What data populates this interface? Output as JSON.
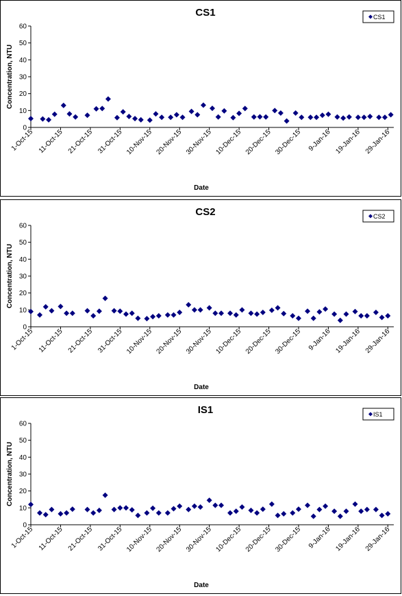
{
  "chart_data": [
    {
      "type": "scatter",
      "title": "CS1",
      "xlabel": "Date",
      "ylabel": "Concentration, NTU",
      "ylim": [
        0,
        60
      ],
      "yticks": [
        0,
        10,
        20,
        30,
        40,
        50,
        60
      ],
      "xlim": [
        "2015-10-01",
        "2016-01-31"
      ],
      "xticks": [
        "1-Oct-15",
        "11-Oct-15",
        "21-Oct-15",
        "31-Oct-15",
        "10-Nov-15",
        "20-Nov-15",
        "30-Nov-15",
        "10-Dec-15",
        "20-Dec-15",
        "30-Dec-15",
        "9-Jan-16",
        "19-Jan-16",
        "29-Jan-16"
      ],
      "legend_position": "top-right",
      "grid": false,
      "series": [
        {
          "name": "CS1",
          "color": "#000080",
          "points": [
            [
              "2015-10-01",
              5.2
            ],
            [
              "2015-10-05",
              5.0
            ],
            [
              "2015-10-07",
              4.5
            ],
            [
              "2015-10-09",
              7.8
            ],
            [
              "2015-10-12",
              13.0
            ],
            [
              "2015-10-14",
              8.0
            ],
            [
              "2015-10-16",
              6.2
            ],
            [
              "2015-10-20",
              7.2
            ],
            [
              "2015-10-23",
              11.0
            ],
            [
              "2015-10-25",
              11.2
            ],
            [
              "2015-10-27",
              16.8
            ],
            [
              "2015-10-30",
              5.8
            ],
            [
              "2015-11-01",
              9.2
            ],
            [
              "2015-11-03",
              6.5
            ],
            [
              "2015-11-05",
              5.2
            ],
            [
              "2015-11-07",
              4.5
            ],
            [
              "2015-11-10",
              4.3
            ],
            [
              "2015-11-12",
              8.0
            ],
            [
              "2015-11-14",
              6.0
            ],
            [
              "2015-11-17",
              6.0
            ],
            [
              "2015-11-19",
              7.5
            ],
            [
              "2015-11-21",
              6.0
            ],
            [
              "2015-11-24",
              9.5
            ],
            [
              "2015-11-26",
              7.5
            ],
            [
              "2015-11-28",
              13.2
            ],
            [
              "2015-12-01",
              11.3
            ],
            [
              "2015-12-03",
              6.2
            ],
            [
              "2015-12-05",
              9.8
            ],
            [
              "2015-12-08",
              5.8
            ],
            [
              "2015-12-10",
              8.3
            ],
            [
              "2015-12-12",
              11.2
            ],
            [
              "2015-12-15",
              6.2
            ],
            [
              "2015-12-17",
              6.3
            ],
            [
              "2015-12-19",
              6.2
            ],
            [
              "2015-12-22",
              10.0
            ],
            [
              "2015-12-24",
              8.5
            ],
            [
              "2015-12-26",
              3.8
            ],
            [
              "2015-12-29",
              8.5
            ],
            [
              "2015-12-31",
              6.0
            ],
            [
              "2016-01-03",
              6.0
            ],
            [
              "2016-01-05",
              6.0
            ],
            [
              "2016-01-07",
              7.2
            ],
            [
              "2016-01-09",
              7.8
            ],
            [
              "2016-01-12",
              6.2
            ],
            [
              "2016-01-14",
              5.5
            ],
            [
              "2016-01-16",
              6.2
            ],
            [
              "2016-01-19",
              6.0
            ],
            [
              "2016-01-21",
              6.0
            ],
            [
              "2016-01-23",
              6.5
            ],
            [
              "2016-01-26",
              6.0
            ],
            [
              "2016-01-28",
              6.0
            ],
            [
              "2016-01-30",
              7.5
            ]
          ]
        }
      ]
    },
    {
      "type": "scatter",
      "title": "CS2",
      "xlabel": "Date",
      "ylabel": "Concentration, NTU",
      "ylim": [
        0,
        60
      ],
      "yticks": [
        0,
        10,
        20,
        30,
        40,
        50,
        60
      ],
      "xlim": [
        "2015-10-01",
        "2016-01-31"
      ],
      "xticks": [
        "1-Oct-15",
        "11-Oct-15",
        "21-Oct-15",
        "31-Oct-15",
        "10-Nov-15",
        "20-Nov-15",
        "30-Nov-15",
        "10-Dec-15",
        "20-Dec-15",
        "30-Dec-15",
        "9-Jan-16",
        "19-Jan-16",
        "29-Jan-16"
      ],
      "legend_position": "top-right",
      "grid": false,
      "series": [
        {
          "name": "CS2",
          "color": "#000080",
          "points": [
            [
              "2015-10-01",
              9.0
            ],
            [
              "2015-10-04",
              7.0
            ],
            [
              "2015-10-06",
              11.8
            ],
            [
              "2015-10-08",
              9.5
            ],
            [
              "2015-10-11",
              12.0
            ],
            [
              "2015-10-13",
              8.0
            ],
            [
              "2015-10-15",
              8.0
            ],
            [
              "2015-10-20",
              9.5
            ],
            [
              "2015-10-22",
              6.5
            ],
            [
              "2015-10-24",
              9.2
            ],
            [
              "2015-10-26",
              16.8
            ],
            [
              "2015-10-29",
              9.5
            ],
            [
              "2015-10-31",
              9.2
            ],
            [
              "2015-11-02",
              7.5
            ],
            [
              "2015-11-04",
              8.0
            ],
            [
              "2015-11-06",
              5.0
            ],
            [
              "2015-11-09",
              4.8
            ],
            [
              "2015-11-11",
              6.0
            ],
            [
              "2015-11-13",
              6.5
            ],
            [
              "2015-11-16",
              7.0
            ],
            [
              "2015-11-18",
              7.0
            ],
            [
              "2015-11-20",
              8.5
            ],
            [
              "2015-11-23",
              13.0
            ],
            [
              "2015-11-25",
              10.0
            ],
            [
              "2015-11-27",
              10.0
            ],
            [
              "2015-11-30",
              11.2
            ],
            [
              "2015-12-02",
              8.0
            ],
            [
              "2015-12-04",
              8.0
            ],
            [
              "2015-12-07",
              8.0
            ],
            [
              "2015-12-09",
              7.0
            ],
            [
              "2015-12-11",
              10.0
            ],
            [
              "2015-12-14",
              8.0
            ],
            [
              "2015-12-16",
              7.5
            ],
            [
              "2015-12-18",
              8.5
            ],
            [
              "2015-12-21",
              9.8
            ],
            [
              "2015-12-23",
              11.2
            ],
            [
              "2015-12-25",
              7.8
            ],
            [
              "2015-12-28",
              6.5
            ],
            [
              "2015-12-30",
              5.0
            ],
            [
              "2016-01-02",
              9.2
            ],
            [
              "2016-01-04",
              5.0
            ],
            [
              "2016-01-06",
              8.8
            ],
            [
              "2016-01-08",
              10.5
            ],
            [
              "2016-01-11",
              7.5
            ],
            [
              "2016-01-13",
              3.8
            ],
            [
              "2016-01-15",
              7.5
            ],
            [
              "2016-01-18",
              9.0
            ],
            [
              "2016-01-20",
              6.5
            ],
            [
              "2016-01-22",
              6.5
            ],
            [
              "2016-01-25",
              8.5
            ],
            [
              "2016-01-27",
              5.5
            ],
            [
              "2016-01-29",
              6.5
            ]
          ]
        }
      ]
    },
    {
      "type": "scatter",
      "title": "IS1",
      "xlabel": "Date",
      "ylabel": "Concentration, NTU",
      "ylim": [
        0,
        60
      ],
      "yticks": [
        0,
        10,
        20,
        30,
        40,
        50,
        60
      ],
      "xlim": [
        "2015-10-01",
        "2016-01-31"
      ],
      "xticks": [
        "1-Oct-15",
        "11-Oct-15",
        "21-Oct-15",
        "31-Oct-15",
        "10-Nov-15",
        "20-Nov-15",
        "30-Nov-15",
        "10-Dec-15",
        "20-Dec-15",
        "30-Dec-15",
        "9-Jan-16",
        "19-Jan-16",
        "29-Jan-16"
      ],
      "legend_position": "top-right",
      "grid": false,
      "series": [
        {
          "name": "IS1",
          "color": "#000080",
          "points": [
            [
              "2015-10-01",
              12.0
            ],
            [
              "2015-10-04",
              7.0
            ],
            [
              "2015-10-06",
              6.0
            ],
            [
              "2015-10-08",
              9.0
            ],
            [
              "2015-10-11",
              6.5
            ],
            [
              "2015-10-13",
              7.0
            ],
            [
              "2015-10-15",
              9.2
            ],
            [
              "2015-10-20",
              9.0
            ],
            [
              "2015-10-22",
              7.0
            ],
            [
              "2015-10-24",
              8.5
            ],
            [
              "2015-10-26",
              17.5
            ],
            [
              "2015-10-29",
              9.0
            ],
            [
              "2015-10-31",
              10.0
            ],
            [
              "2015-11-02",
              10.0
            ],
            [
              "2015-11-04",
              8.8
            ],
            [
              "2015-11-06",
              5.5
            ],
            [
              "2015-11-09",
              7.0
            ],
            [
              "2015-11-11",
              9.8
            ],
            [
              "2015-11-13",
              7.0
            ],
            [
              "2015-11-16",
              7.0
            ],
            [
              "2015-11-18",
              9.5
            ],
            [
              "2015-11-20",
              11.0
            ],
            [
              "2015-11-23",
              9.0
            ],
            [
              "2015-11-25",
              11.0
            ],
            [
              "2015-11-27",
              10.5
            ],
            [
              "2015-11-30",
              14.5
            ],
            [
              "2015-12-02",
              11.5
            ],
            [
              "2015-12-04",
              11.5
            ],
            [
              "2015-12-07",
              7.0
            ],
            [
              "2015-12-09",
              8.0
            ],
            [
              "2015-12-11",
              10.5
            ],
            [
              "2015-12-14",
              8.5
            ],
            [
              "2015-12-16",
              7.0
            ],
            [
              "2015-12-18",
              9.2
            ],
            [
              "2015-12-21",
              12.2
            ],
            [
              "2015-12-23",
              5.5
            ],
            [
              "2015-12-25",
              6.5
            ],
            [
              "2015-12-28",
              7.0
            ],
            [
              "2015-12-30",
              9.2
            ],
            [
              "2016-01-02",
              11.5
            ],
            [
              "2016-01-04",
              5.0
            ],
            [
              "2016-01-06",
              9.0
            ],
            [
              "2016-01-08",
              11.0
            ],
            [
              "2016-01-11",
              8.0
            ],
            [
              "2016-01-13",
              5.0
            ],
            [
              "2016-01-15",
              8.0
            ],
            [
              "2016-01-18",
              12.2
            ],
            [
              "2016-01-20",
              8.0
            ],
            [
              "2016-01-22",
              9.0
            ],
            [
              "2016-01-25",
              9.0
            ],
            [
              "2016-01-27",
              5.5
            ],
            [
              "2016-01-29",
              6.5
            ]
          ]
        }
      ]
    }
  ]
}
